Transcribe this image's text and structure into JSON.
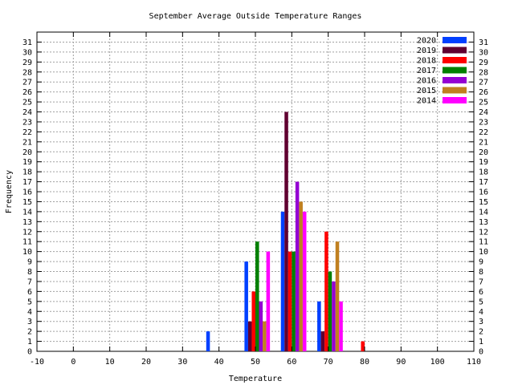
{
  "chart_data": {
    "type": "bar",
    "title": "September Average Outside Temperature Ranges",
    "xlabel": "Temperature",
    "ylabel": "Frequency",
    "xlim": [
      -10,
      110
    ],
    "ylim": [
      0,
      32
    ],
    "x_ticks": [
      -10,
      0,
      10,
      20,
      30,
      40,
      50,
      60,
      70,
      80,
      90,
      100,
      110
    ],
    "y_ticks": [
      0,
      1,
      2,
      3,
      4,
      5,
      6,
      7,
      8,
      9,
      10,
      11,
      12,
      13,
      14,
      15,
      16,
      17,
      18,
      19,
      20,
      21,
      22,
      23,
      24,
      25,
      26,
      27,
      28,
      29,
      30,
      31
    ],
    "y2_ticks": [
      0,
      1,
      2,
      3,
      4,
      5,
      6,
      7,
      8,
      9,
      10,
      11,
      12,
      13,
      14,
      15,
      16,
      17,
      18,
      19,
      20,
      21,
      22,
      23,
      24,
      25,
      26,
      27,
      28,
      29,
      30,
      31
    ],
    "grid": true,
    "legend_position": "top-right",
    "series": [
      {
        "name": "2020",
        "color": "#0040ff",
        "points": [
          [
            37,
            2
          ],
          [
            47.5,
            9
          ],
          [
            57.5,
            14
          ],
          [
            67.5,
            5
          ]
        ]
      },
      {
        "name": "2019",
        "color": "#600030",
        "points": [
          [
            48.5,
            3
          ],
          [
            58.5,
            24
          ],
          [
            68.5,
            2
          ]
        ]
      },
      {
        "name": "2018",
        "color": "#ff0000",
        "points": [
          [
            49.5,
            6
          ],
          [
            59.5,
            10
          ],
          [
            69.5,
            12
          ],
          [
            79.5,
            1
          ]
        ]
      },
      {
        "name": "2017",
        "color": "#008000",
        "points": [
          [
            50.5,
            11
          ],
          [
            60.5,
            10
          ],
          [
            70.5,
            8
          ]
        ]
      },
      {
        "name": "2016",
        "color": "#9400d3",
        "points": [
          [
            51.5,
            5
          ],
          [
            61.5,
            17
          ],
          [
            71.5,
            7
          ]
        ]
      },
      {
        "name": "2015",
        "color": "#c08020",
        "points": [
          [
            52.5,
            3
          ],
          [
            62.5,
            15
          ],
          [
            72.5,
            11
          ]
        ]
      },
      {
        "name": "2014",
        "color": "#ff00ff",
        "points": [
          [
            53.5,
            10
          ],
          [
            63.5,
            14
          ],
          [
            73.5,
            5
          ]
        ]
      }
    ]
  }
}
